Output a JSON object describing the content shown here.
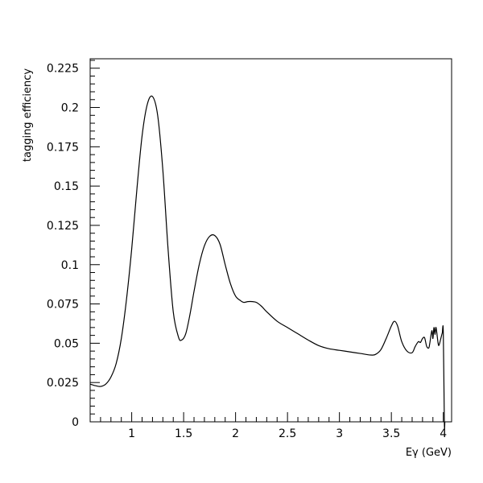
{
  "chart_data": {
    "type": "line",
    "title": "",
    "xlabel": "Eγ (GeV)",
    "ylabel": "tagging efficiency",
    "xlim": [
      0.6,
      4.08
    ],
    "ylim": [
      0,
      0.231
    ],
    "x_ticks": [
      "1",
      "1.5",
      "2",
      "2.5",
      "3",
      "3.5",
      "4"
    ],
    "y_ticks": [
      "0",
      "0.025",
      "0.05",
      "0.075",
      "0.1",
      "0.125",
      "0.15",
      "0.175",
      "0.2",
      "0.225"
    ],
    "grid": false,
    "series": [
      {
        "x": [
          0.6,
          0.65,
          0.7,
          0.75,
          0.8,
          0.85,
          0.9,
          0.95,
          1.0,
          1.05,
          1.1,
          1.15,
          1.2,
          1.25,
          1.3,
          1.35,
          1.4,
          1.45,
          1.48,
          1.52,
          1.56,
          1.6,
          1.65,
          1.7,
          1.75,
          1.8,
          1.85,
          1.9,
          1.95,
          2.0,
          2.05,
          2.08,
          2.12,
          2.16,
          2.2,
          2.25,
          2.3,
          2.4,
          2.5,
          2.6,
          2.7,
          2.8,
          2.9,
          3.0,
          3.1,
          3.2,
          3.3,
          3.35,
          3.4,
          3.45,
          3.5,
          3.53,
          3.56,
          3.6,
          3.65,
          3.7,
          3.73,
          3.76,
          3.78,
          3.8,
          3.82,
          3.84,
          3.86,
          3.87,
          3.89,
          3.9,
          3.91,
          3.92,
          3.93,
          3.95,
          3.96,
          3.98,
          3.99,
          4.0,
          4.01,
          4.015
        ],
        "y": [
          0.024,
          0.023,
          0.0225,
          0.024,
          0.0285,
          0.037,
          0.053,
          0.078,
          0.11,
          0.148,
          0.182,
          0.202,
          0.207,
          0.195,
          0.16,
          0.11,
          0.07,
          0.054,
          0.052,
          0.056,
          0.068,
          0.083,
          0.1,
          0.112,
          0.118,
          0.1185,
          0.113,
          0.1,
          0.088,
          0.08,
          0.077,
          0.076,
          0.0765,
          0.0765,
          0.076,
          0.0735,
          0.07,
          0.064,
          0.06,
          0.056,
          0.052,
          0.0485,
          0.0465,
          0.0455,
          0.0445,
          0.0435,
          0.0425,
          0.043,
          0.046,
          0.053,
          0.061,
          0.064,
          0.061,
          0.051,
          0.045,
          0.044,
          0.048,
          0.051,
          0.0505,
          0.053,
          0.0535,
          0.048,
          0.047,
          0.05,
          0.058,
          0.053,
          0.06,
          0.0555,
          0.06,
          0.05,
          0.049,
          0.054,
          0.0565,
          0.057,
          0.0,
          0.0
        ]
      }
    ]
  }
}
